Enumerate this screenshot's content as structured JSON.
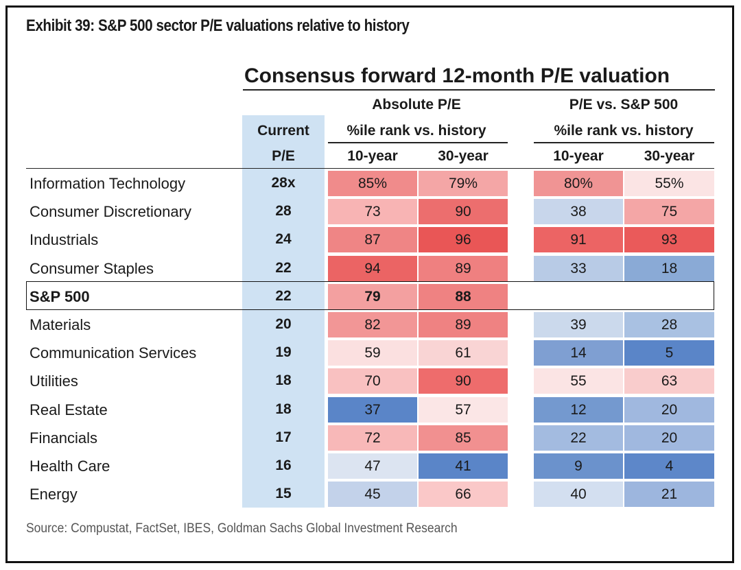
{
  "exhibit_title": "Exhibit 39: S&P 500 sector P/E valuations relative to history",
  "chart_data": {
    "type": "table",
    "title": "Consensus forward 12-month P/E valuation",
    "group_headers": [
      "Absolute P/E",
      "P/E vs. S&P 500"
    ],
    "sub_headers": [
      "%ile rank vs. history",
      "%ile rank vs. history"
    ],
    "current_header": [
      "Current",
      "P/E"
    ],
    "columns": [
      "10-year",
      "30-year",
      "10-year",
      "30-year"
    ],
    "rows": [
      {
        "sector": "Information Technology",
        "pe": "28x",
        "values": [
          "85%",
          "79%",
          "80%",
          "55%"
        ],
        "colors": [
          "#f08b8b",
          "#f4a6a6",
          "#f09494",
          "#fbe4e4"
        ]
      },
      {
        "sector": "Consumer Discretionary",
        "pe": "28",
        "values": [
          "73",
          "90",
          "38",
          "75"
        ],
        "colors": [
          "#f8b4b4",
          "#ec6e6e",
          "#c8d6eb",
          "#f4a6a6"
        ]
      },
      {
        "sector": "Industrials",
        "pe": "24",
        "values": [
          "87",
          "96",
          "91",
          "93"
        ],
        "colors": [
          "#ef8585",
          "#e95656",
          "#ec6464",
          "#ea5a5a"
        ]
      },
      {
        "sector": "Consumer Staples",
        "pe": "22",
        "values": [
          "94",
          "89",
          "33",
          "18"
        ],
        "colors": [
          "#eb6464",
          "#ef8080",
          "#b8cbe6",
          "#8aaad6"
        ]
      },
      {
        "sector": "S&P 500",
        "pe": "22",
        "values": [
          "79",
          "88",
          "",
          ""
        ],
        "colors": [
          "#f3a0a0",
          "#ef8282",
          "#ffffff",
          "#ffffff"
        ],
        "bold": true
      },
      {
        "sector": "Materials",
        "pe": "20",
        "values": [
          "82",
          "89",
          "39",
          "28"
        ],
        "colors": [
          "#f29696",
          "#ef8282",
          "#cbd9ec",
          "#a9c1e2"
        ]
      },
      {
        "sector": "Communication Services",
        "pe": "19",
        "values": [
          "59",
          "61",
          "14",
          "5"
        ],
        "colors": [
          "#fbe0e0",
          "#f9d4d4",
          "#7f9fd2",
          "#5a85c8"
        ]
      },
      {
        "sector": "Utilities",
        "pe": "18",
        "values": [
          "70",
          "90",
          "55",
          "63"
        ],
        "colors": [
          "#f9c1c1",
          "#ee6c6c",
          "#fbe4e4",
          "#f9cccc"
        ]
      },
      {
        "sector": "Real Estate",
        "pe": "18",
        "values": [
          "37",
          "57",
          "12",
          "20"
        ],
        "colors": [
          "#5a85c8",
          "#fbe6e6",
          "#7499cf",
          "#a0b8df"
        ]
      },
      {
        "sector": "Financials",
        "pe": "17",
        "values": [
          "72",
          "85",
          "22",
          "20"
        ],
        "colors": [
          "#f8b8b8",
          "#f19090",
          "#a3bbe0",
          "#a0b8df"
        ]
      },
      {
        "sector": "Health Care",
        "pe": "16",
        "values": [
          "47",
          "41",
          "9",
          "4"
        ],
        "colors": [
          "#dce4f1",
          "#5a85c8",
          "#6b92cc",
          "#5d87c9"
        ]
      },
      {
        "sector": "Energy",
        "pe": "15",
        "values": [
          "45",
          "66",
          "40",
          "21"
        ],
        "colors": [
          "#c3d2ea",
          "#fac8c8",
          "#d3dff0",
          "#9db6de"
        ]
      }
    ]
  },
  "source": "Source: Compustat, FactSet, IBES, Goldman Sachs Global Investment Research"
}
